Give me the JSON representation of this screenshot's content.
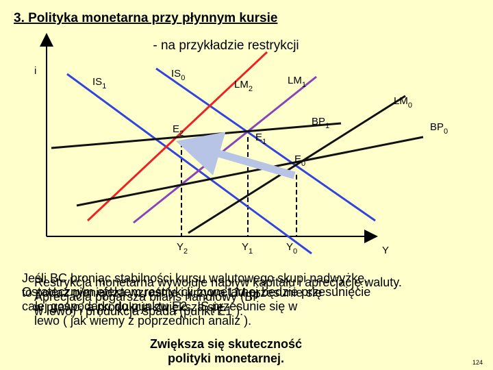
{
  "header": {
    "title": "3. Polityka monetarna przy płynnym kursie",
    "subtitle": "- na przykładzie restrykcji"
  },
  "axes": {
    "y": "i",
    "x": "Y"
  },
  "curves": [
    {
      "label": "IS",
      "sub": "1"
    },
    {
      "label": "IS",
      "sub": "0"
    },
    {
      "label": "LM",
      "sub": "2"
    },
    {
      "label": "LM",
      "sub": "1"
    },
    {
      "label": "LM",
      "sub": "0"
    },
    {
      "label": "BP",
      "sub": "1"
    },
    {
      "label": "BP",
      "sub": "0"
    }
  ],
  "points": [
    {
      "label": "E",
      "sub": "2"
    },
    {
      "label": "E",
      "sub": "1"
    },
    {
      "label": "E",
      "sub": "0"
    }
  ],
  "levels": [
    {
      "label": "Y",
      "sub": "2"
    },
    {
      "label": "Y",
      "sub": "1"
    },
    {
      "label": "Y",
      "sub": "0"
    }
  ],
  "notes": [
    [
      "Jeśli BC broniąc stabilności kursu walutowego skupi nadwyżkę,",
      "to podaż pieniądza wzrośnie i krzywa LM przesunie się",
      "w prawo, a produkcja zwiększa się."
    ],
    [
      "Restrykcja monetarna wywołuje napływ kapitału i aprecjację waluty.",
      "Aprecjacja pogarsza bilans handlowy (BP",
      "w lewo) i produkcja spada (punkt E1 )."
    ],
    [
      "Ostatecznym efektem restrykcji monetarnej będzie przesunięcie",
      "całej gospodarki do punktu E2 , IS przesunie się w",
      "lewo ( jak wiemy z poprzednich analiz )."
    ],
    [
      "Zwiększa się skuteczność",
      "polityki monetarnej."
    ]
  ],
  "footer": {
    "page": "124"
  }
}
